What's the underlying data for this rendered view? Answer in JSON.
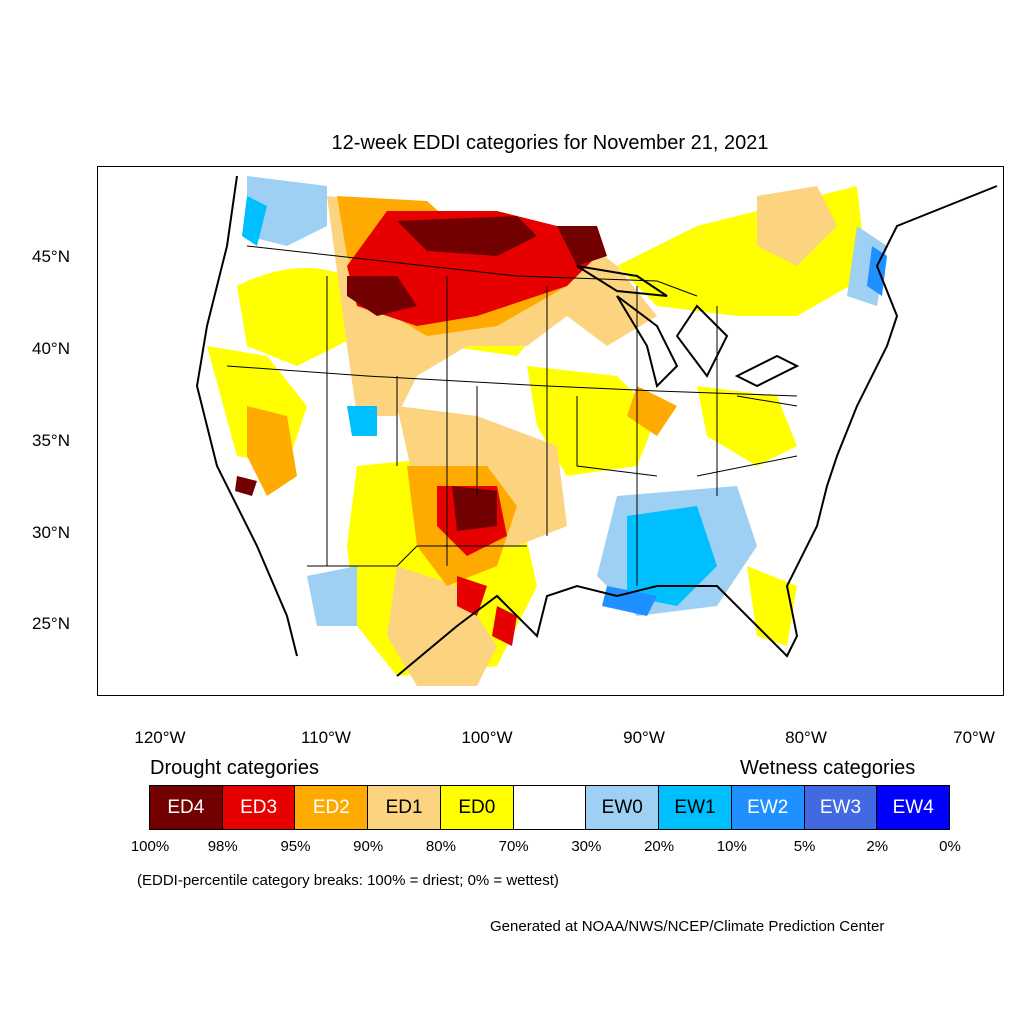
{
  "map": {
    "title": "12-week EDDI categories for November 21, 2021",
    "lat_ticks": [
      "45°N",
      "40°N",
      "35°N",
      "30°N",
      "25°N"
    ],
    "lon_ticks": [
      "120°W",
      "110°W",
      "100°W",
      "90°W",
      "80°W",
      "70°W"
    ]
  },
  "legend": {
    "drought_heading": "Drought categories",
    "wetness_heading": "Wetness categories",
    "categories": [
      {
        "label": "ED4",
        "color": "#730000",
        "text_color": "#ffffff"
      },
      {
        "label": "ED3",
        "color": "#e60000",
        "text_color": "#ffffff"
      },
      {
        "label": "ED2",
        "color": "#ffaa00",
        "text_color": "#ffffff"
      },
      {
        "label": "ED1",
        "color": "#fcd37f",
        "text_color": "#000000"
      },
      {
        "label": "ED0",
        "color": "#ffff00",
        "text_color": "#000000"
      },
      {
        "label": "",
        "color": "#ffffff",
        "text_color": "#000000"
      },
      {
        "label": "EW0",
        "color": "#9dd0f2",
        "text_color": "#000000"
      },
      {
        "label": "EW1",
        "color": "#00bfff",
        "text_color": "#000000"
      },
      {
        "label": "EW2",
        "color": "#1e90ff",
        "text_color": "#ffffff"
      },
      {
        "label": "EW3",
        "color": "#4169e1",
        "text_color": "#ffffff"
      },
      {
        "label": "EW4",
        "color": "#0000ff",
        "text_color": "#ffffff"
      }
    ],
    "breaks": [
      "100%",
      "98%",
      "95%",
      "90%",
      "80%",
      "70%",
      "30%",
      "20%",
      "10%",
      "5%",
      "2%",
      "0%"
    ]
  },
  "note": "(EDDI-percentile category breaks: 100% = driest; 0% = wettest)",
  "credit": "Generated at NOAA/NWS/NCEP/Climate Prediction Center"
}
